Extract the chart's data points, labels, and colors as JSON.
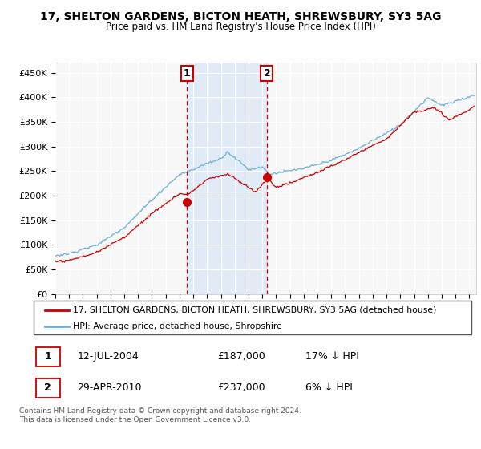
{
  "title": "17, SHELTON GARDENS, BICTON HEATH, SHREWSBURY, SY3 5AG",
  "subtitle": "Price paid vs. HM Land Registry's House Price Index (HPI)",
  "legend_line1": "17, SHELTON GARDENS, BICTON HEATH, SHREWSBURY, SY3 5AG (detached house)",
  "legend_line2": "HPI: Average price, detached house, Shropshire",
  "footnote": "Contains HM Land Registry data © Crown copyright and database right 2024.\nThis data is licensed under the Open Government Licence v3.0.",
  "sale1_date": "12-JUL-2004",
  "sale1_price": "£187,000",
  "sale1_hpi": "17% ↓ HPI",
  "sale2_date": "29-APR-2010",
  "sale2_price": "£237,000",
  "sale2_hpi": "6% ↓ HPI",
  "sale1_year": 2004.54,
  "sale2_year": 2010.33,
  "sale1_price_val": 187000,
  "sale2_price_val": 237000,
  "ylim": [
    0,
    470000
  ],
  "xlim_start": 1995,
  "xlim_end": 2025.5,
  "hpi_color": "#6baed6",
  "sale_color": "#cc0000",
  "marker_box_color": "#cc0000",
  "vline_color": "#cc0000",
  "background_shaded_color": "#dce9f7",
  "plot_bg": "#f7f7f7"
}
